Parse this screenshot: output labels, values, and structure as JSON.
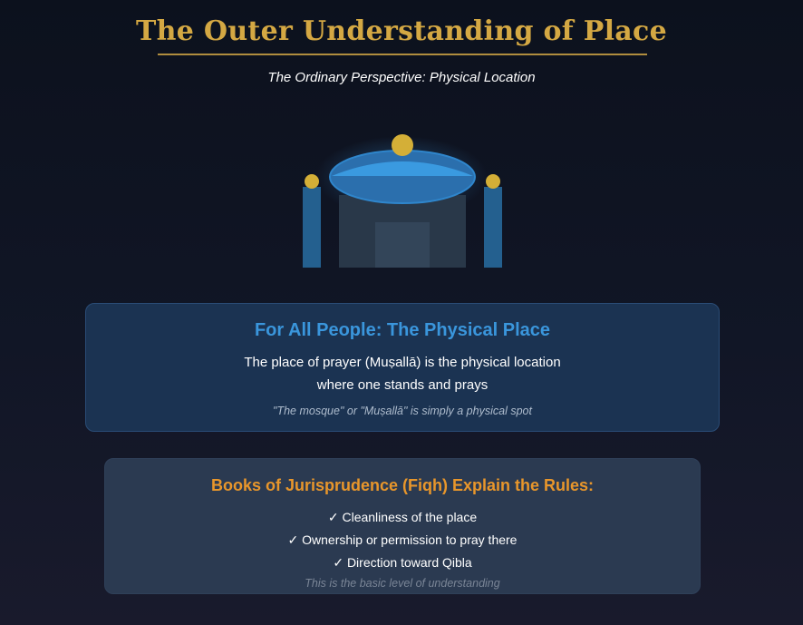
{
  "header": {
    "title": "The Outer Understanding of Place",
    "subtitle": "The Ordinary Perspective: Physical Location"
  },
  "illustration": {
    "icon": "mosque-icon",
    "colors": {
      "dome": "#2f86cc",
      "finial": "#d4af37",
      "minaret": "#24608f",
      "building": "#293849",
      "door": "#334559"
    }
  },
  "physical_card": {
    "title": "For All People: The Physical Place",
    "body_line1": "The place of prayer (Muṣallā) is the physical location",
    "body_line2": "where one stands and prays",
    "note": "\"The mosque\" or \"Muṣallā\" is simply a physical spot"
  },
  "rules_card": {
    "title": "Books of Jurisprudence (Fiqh) Explain the Rules:",
    "items": [
      "✓ Cleanliness of the place",
      "✓ Ownership or permission to pray there",
      "✓ Direction toward Qibla"
    ],
    "note": "This is the basic level of understanding"
  },
  "colors": {
    "title_gold": "#d4a843",
    "physical_title_blue": "#3a96dc",
    "rules_title_orange": "#e8962b"
  }
}
